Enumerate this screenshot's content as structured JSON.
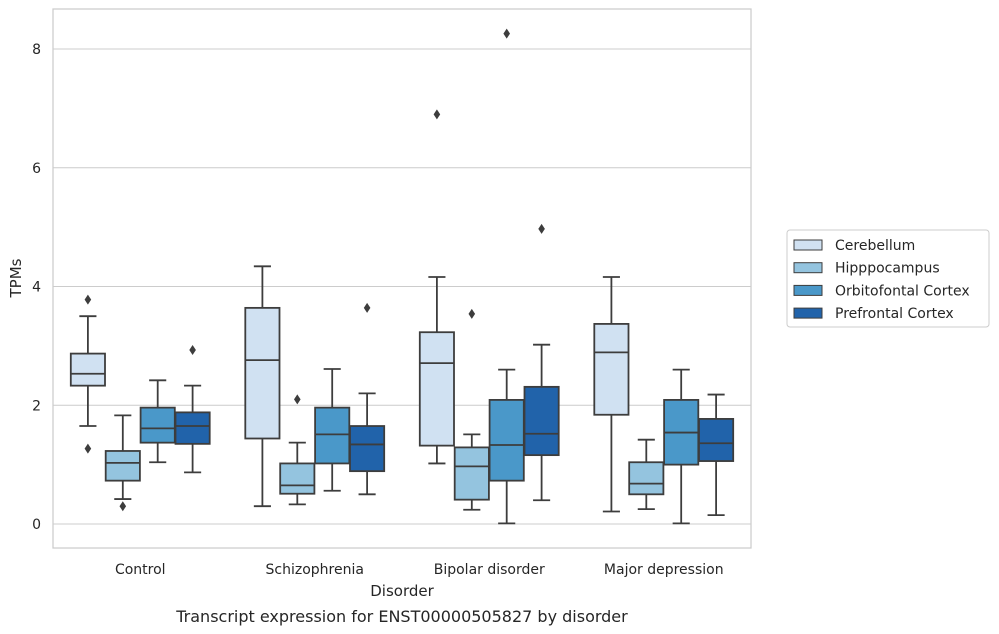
{
  "chart_data": {
    "type": "boxplot",
    "title": "Transcript expression for ENST00000505827 by disorder",
    "xlabel": "Disorder",
    "ylabel": "TPMs",
    "ylim": [
      -0.4,
      8.7
    ],
    "yticks": [
      0,
      2,
      4,
      6,
      8
    ],
    "grid": true,
    "legend_position": "right",
    "categories": [
      "Control",
      "Schizophrenia",
      "Bipolar disorder",
      "Major depression"
    ],
    "series": [
      {
        "name": "Cerebellum",
        "color": "#d0e1f2",
        "boxes": [
          {
            "whislo": 1.65,
            "q1": 2.33,
            "med": 2.53,
            "q3": 2.87,
            "whishi": 3.5,
            "fliers": [
              3.78,
              1.27
            ]
          },
          {
            "whislo": 0.3,
            "q1": 1.44,
            "med": 2.76,
            "q3": 3.64,
            "whishi": 4.34,
            "fliers": []
          },
          {
            "whislo": 1.02,
            "q1": 1.32,
            "med": 2.71,
            "q3": 3.23,
            "whishi": 4.16,
            "fliers": [
              6.9
            ]
          },
          {
            "whislo": 0.21,
            "q1": 1.84,
            "med": 2.89,
            "q3": 3.37,
            "whishi": 4.16,
            "fliers": []
          }
        ]
      },
      {
        "name": "Hipppocampus",
        "color": "#94c4df",
        "boxes": [
          {
            "whislo": 0.42,
            "q1": 0.73,
            "med": 1.03,
            "q3": 1.23,
            "whishi": 1.83,
            "fliers": [
              0.3
            ]
          },
          {
            "whislo": 0.33,
            "q1": 0.51,
            "med": 0.65,
            "q3": 1.02,
            "whishi": 1.37,
            "fliers": [
              2.1
            ]
          },
          {
            "whislo": 0.24,
            "q1": 0.41,
            "med": 0.97,
            "q3": 1.29,
            "whishi": 1.51,
            "fliers": [
              3.54
            ]
          },
          {
            "whislo": 0.25,
            "q1": 0.5,
            "med": 0.68,
            "q3": 1.04,
            "whishi": 1.42,
            "fliers": []
          }
        ]
      },
      {
        "name": "Orbitofontal Cortex",
        "color": "#4a98c9",
        "boxes": [
          {
            "whislo": 1.04,
            "q1": 1.37,
            "med": 1.61,
            "q3": 1.96,
            "whishi": 2.42,
            "fliers": []
          },
          {
            "whislo": 0.56,
            "q1": 1.02,
            "med": 1.51,
            "q3": 1.96,
            "whishi": 2.61,
            "fliers": []
          },
          {
            "whislo": 0.01,
            "q1": 0.73,
            "med": 1.33,
            "q3": 2.09,
            "whishi": 2.6,
            "fliers": [
              8.26
            ]
          },
          {
            "whislo": 0.01,
            "q1": 1.0,
            "med": 1.54,
            "q3": 2.09,
            "whishi": 2.6,
            "fliers": []
          }
        ]
      },
      {
        "name": "Prefrontal Cortex",
        "color": "#2163aa",
        "boxes": [
          {
            "whislo": 0.87,
            "q1": 1.35,
            "med": 1.65,
            "q3": 1.88,
            "whishi": 2.33,
            "fliers": [
              2.93
            ]
          },
          {
            "whislo": 0.5,
            "q1": 0.89,
            "med": 1.34,
            "q3": 1.65,
            "whishi": 2.2,
            "fliers": [
              3.64
            ]
          },
          {
            "whislo": 0.4,
            "q1": 1.16,
            "med": 1.52,
            "q3": 2.31,
            "whishi": 3.02,
            "fliers": [
              4.97
            ]
          },
          {
            "whislo": 0.15,
            "q1": 1.06,
            "med": 1.36,
            "q3": 1.77,
            "whishi": 2.18,
            "fliers": []
          }
        ]
      }
    ]
  }
}
